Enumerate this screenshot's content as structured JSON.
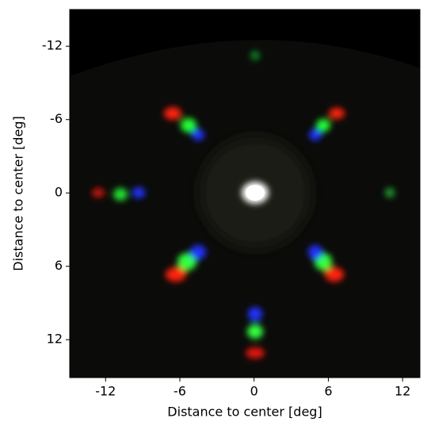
{
  "chart_data": {
    "type": "image",
    "xlabel": "Distance to center [deg]",
    "ylabel": "Distance to center [deg]",
    "xlim": [
      -14.9,
      13.4
    ],
    "xticks": [
      -12,
      -6,
      0,
      6,
      12
    ],
    "ylim": [
      15.1,
      -15
    ],
    "yticks": [
      -12,
      -6,
      0,
      6,
      12
    ]
  }
}
